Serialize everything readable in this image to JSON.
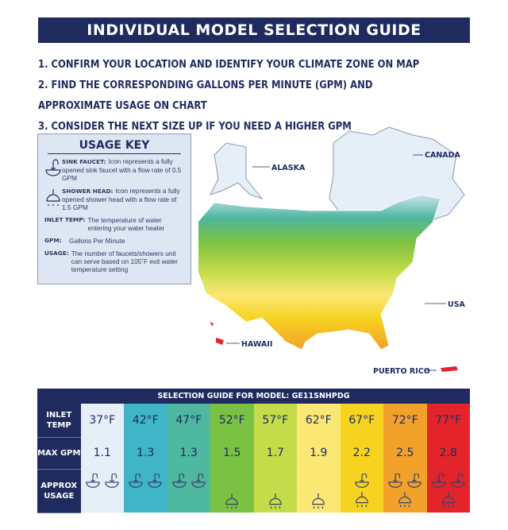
{
  "title": "INDIVIDUAL MODEL SELECTION GUIDE",
  "steps": [
    "1. CONFIRM YOUR LOCATION AND IDENTIFY YOUR CLIMATE ZONE ON MAP",
    "2. FIND THE CORRESPONDING GALLONS PER MINUTE (GPM) AND APPROXIMATE USAGE ON CHART",
    "3. CONSIDER THE NEXT SIZE UP IF YOU NEED A HIGHER GPM"
  ],
  "usage_key": {
    "title": "USAGE KEY",
    "items": [
      {
        "term": "SINK FAUCET:",
        "desc": "Icon represents a fully opened sink faucet with a flow rate of 0.5 GPM",
        "icon": "sink-faucet-icon"
      },
      {
        "term": "SHOWER HEAD:",
        "desc": "Icon represents a fully opened shower head with a flow rate of 1.5 GPM",
        "icon": "shower-head-icon"
      },
      {
        "term": "INLET TEMP:",
        "desc": "The temperature of water entering your water heater"
      },
      {
        "term": "GPM:",
        "desc": "Gallons Per Minute"
      },
      {
        "term": "USAGE:",
        "desc": "The number of faucets/showers unit can serve based on 105˚F exit water temperature setting"
      }
    ]
  },
  "map_labels": {
    "alaska": "ALASKA",
    "canada": "CANADA",
    "usa": "USA",
    "hawaii": "HAWAII",
    "puerto_rico": "PUERTO RICO"
  },
  "table": {
    "header": "SELECTION GUIDE FOR MODEL: GE11SNHPDG",
    "row_labels": {
      "temp": "INLET TEMP",
      "gpm": "MAX GPM",
      "usage": "APPROX USAGE"
    },
    "columns": [
      {
        "temp": "37°F",
        "gpm": "1.1",
        "faucets": 2,
        "showers": 0,
        "color": "#e6eef8"
      },
      {
        "temp": "42°F",
        "gpm": "1.3",
        "faucets": 2,
        "showers": 0,
        "color": "#3fb5c7"
      },
      {
        "temp": "47°F",
        "gpm": "1.3",
        "faucets": 2,
        "showers": 0,
        "color": "#4db79f"
      },
      {
        "temp": "52°F",
        "gpm": "1.5",
        "faucets": 0,
        "showers": 1,
        "color": "#7bc143"
      },
      {
        "temp": "57°F",
        "gpm": "1.7",
        "faucets": 0,
        "showers": 1,
        "color": "#c5dc4a"
      },
      {
        "temp": "62°F",
        "gpm": "1.9",
        "faucets": 0,
        "showers": 1,
        "color": "#fbe773"
      },
      {
        "temp": "67°F",
        "gpm": "2.2",
        "faucets": 1,
        "showers": 1,
        "color": "#f6d320"
      },
      {
        "temp": "72°F",
        "gpm": "2.5",
        "faucets": 2,
        "showers": 1,
        "color": "#f2a12b"
      },
      {
        "temp": "77°F",
        "gpm": "2.8",
        "faucets": 2,
        "showers": 1,
        "color": "#e3242b"
      }
    ]
  }
}
